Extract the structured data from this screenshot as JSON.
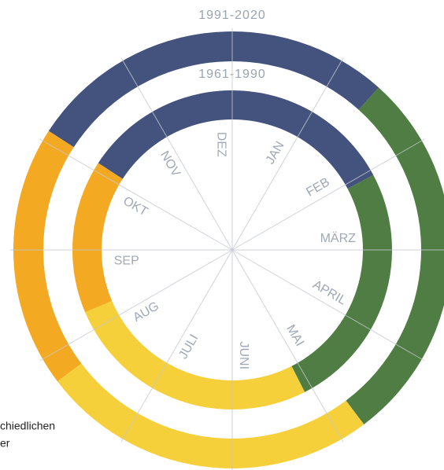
{
  "chart_data": {
    "type": "ring",
    "month_labels": [
      "DEZ",
      "JAN",
      "FEB",
      "MÄRZ",
      "APRIL",
      "MAI",
      "JUNI",
      "JULI",
      "AUG",
      "SEP",
      "OKT",
      "NOV"
    ],
    "rings": [
      {
        "name": "1991-2020",
        "segments": [
          {
            "start": -57,
            "end": 42,
            "color": "#44537d"
          },
          {
            "start": 42,
            "end": 143,
            "color": "#4f7d44"
          },
          {
            "start": 143,
            "end": 233,
            "color": "#f5d03a"
          },
          {
            "start": 233,
            "end": 303,
            "color": "#f4a922"
          }
        ]
      },
      {
        "name": "1961-1990",
        "segments": [
          {
            "start": -57,
            "end": 62,
            "color": "#44537d"
          },
          {
            "start": 62,
            "end": 153,
            "color": "#4f7d44"
          },
          {
            "start": 153,
            "end": 247,
            "color": "#f5d03a"
          },
          {
            "start": 247,
            "end": 303,
            "color": "#f4a922"
          }
        ]
      }
    ],
    "note_lines": [
      "chiedlichen",
      "er"
    ]
  }
}
